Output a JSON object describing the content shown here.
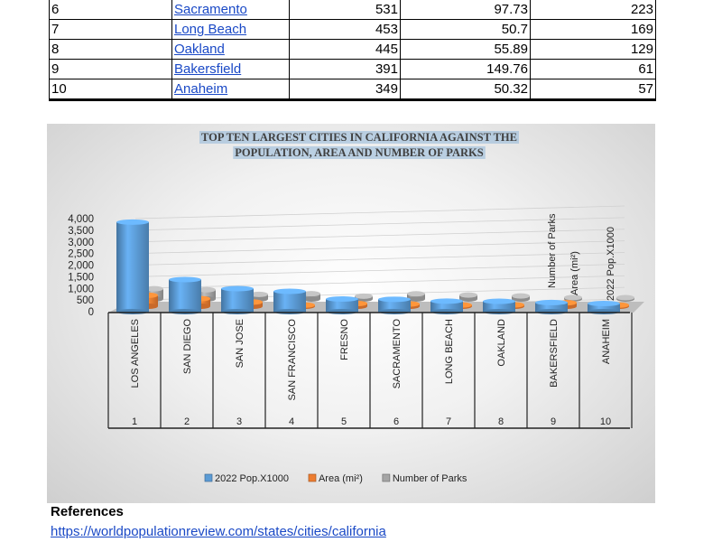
{
  "table": {
    "rows": [
      {
        "rank": "6",
        "city": "Sacramento",
        "population": "531",
        "area": "97.73",
        "parks": "223"
      },
      {
        "rank": "7",
        "city": "Long Beach",
        "population": "453",
        "area": "50.7",
        "parks": "169"
      },
      {
        "rank": "8",
        "city": "Oakland",
        "population": "445",
        "area": "55.89",
        "parks": "129"
      },
      {
        "rank": "9",
        "city": "Bakersfield",
        "population": "391",
        "area": "149.76",
        "parks": "61"
      },
      {
        "rank": "10",
        "city": "Anaheim",
        "population": "349",
        "area": "50.32",
        "parks": "57"
      }
    ]
  },
  "chart_data": {
    "type": "bar",
    "title_line1": "TOP TEN LARGEST CITIES IN CALIFORNIA AGAINST THE",
    "title_line2": "POPULATION, AREA AND NUMBER OF PARKS",
    "categories": [
      "LOS ANGELES",
      "SAN DIEGO",
      "SAN JOSE",
      "SAN FRANCISCO",
      "FRESNO",
      "SACRAMENTO",
      "LONG BEACH",
      "OAKLAND",
      "BAKERSFIELD",
      "ANAHEIM"
    ],
    "ranks": [
      "1",
      "2",
      "3",
      "4",
      "5",
      "6",
      "7",
      "8",
      "9",
      "10"
    ],
    "series": [
      {
        "name": "2022 Pop.X1000",
        "color": "#5b9bd5",
        "values": [
          3850,
          1380,
          990,
          875,
          545,
          531,
          453,
          445,
          391,
          349
        ]
      },
      {
        "name": "Area (mi²)",
        "color": "#ed7d31",
        "values": [
          469,
          326,
          178,
          47,
          115,
          98,
          51,
          56,
          150,
          50
        ]
      },
      {
        "name": "Number of Parks",
        "color": "#a5a5a5",
        "values": [
          440,
          400,
          200,
          230,
          120,
          223,
          169,
          129,
          61,
          57
        ]
      }
    ],
    "y_ticks": [
      "0",
      "500",
      "1,000",
      "1,500",
      "2,000",
      "2,500",
      "3,000",
      "3,500",
      "4,000"
    ],
    "ylim": [
      0,
      4000
    ],
    "legend_position": "bottom"
  },
  "references": {
    "heading": "References",
    "link": "https://worldpopulationreview.com/states/cities/california"
  }
}
